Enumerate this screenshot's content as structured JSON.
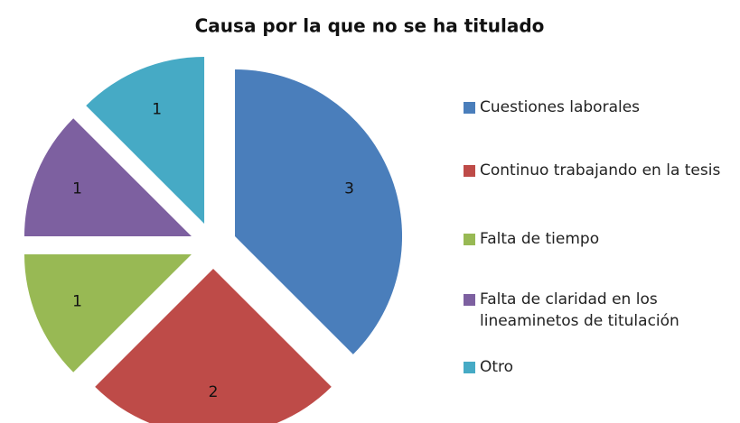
{
  "chart_data": {
    "type": "pie",
    "title": "Causa por la que no se ha titulado",
    "categories": [
      "Cuestiones laborales",
      "Continuo trabajando en la tesis",
      "Falta de tiempo",
      "Falta de claridad en los lineaminetos de titulación",
      "Otro"
    ],
    "values": [
      3,
      2,
      1,
      1,
      1
    ],
    "colors": [
      "#4a7ebb",
      "#be4b48",
      "#98b954",
      "#7d60a0",
      "#46aac5"
    ],
    "legend": "right"
  }
}
